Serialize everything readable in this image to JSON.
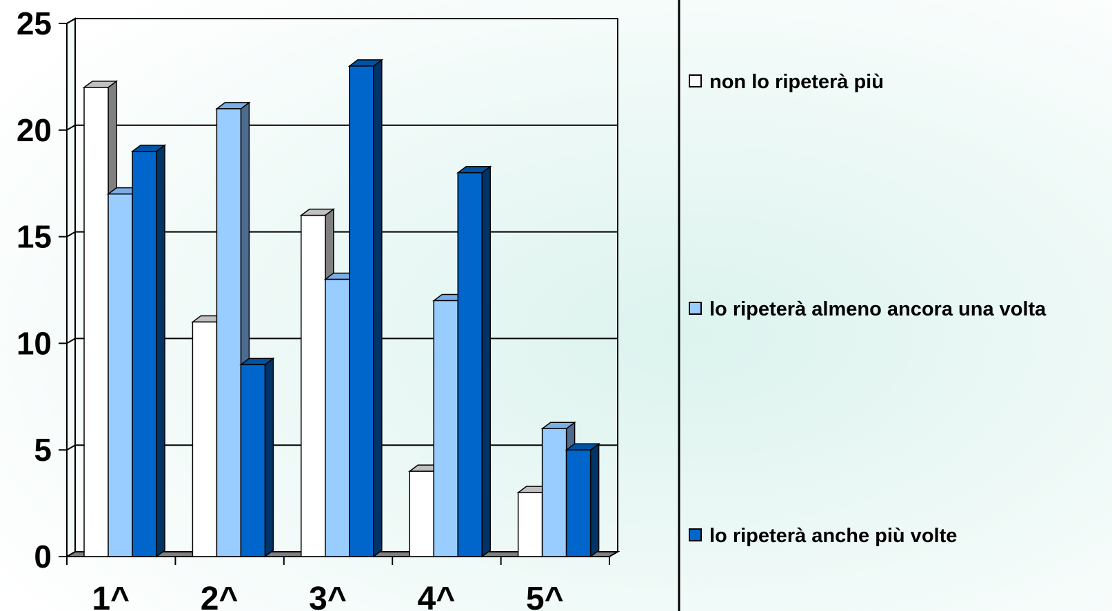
{
  "chart_data": {
    "type": "bar",
    "title": "",
    "xlabel": "",
    "ylabel": "",
    "categories": [
      "1^",
      "2^",
      "3^",
      "4^",
      "5^"
    ],
    "series": [
      {
        "name": "non lo ripeterà più",
        "values": [
          22,
          11,
          16,
          4,
          3
        ],
        "color": "#ffffff",
        "side": "#808080",
        "top": "#c0c0c0"
      },
      {
        "name": "lo ripeterà almeno ancora una volta",
        "values": [
          17,
          21,
          13,
          12,
          6
        ],
        "color": "#99ccff",
        "side": "#4d6b8f",
        "top": "#7aaee6"
      },
      {
        "name": "lo ripeterà anche più volte",
        "values": [
          19,
          9,
          23,
          18,
          5
        ],
        "color": "#0066cc",
        "side": "#003366",
        "top": "#0052a3"
      }
    ],
    "y_ticks": [
      0,
      5,
      10,
      15,
      20,
      25
    ],
    "ylim": [
      0,
      25
    ],
    "grid": true,
    "legend_position": "right",
    "style": "3d-clustered-column"
  }
}
